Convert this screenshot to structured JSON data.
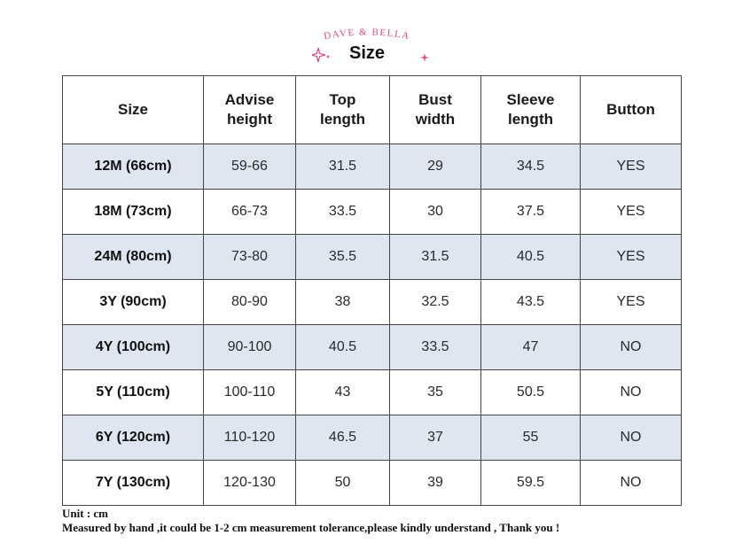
{
  "brand": {
    "logo_text": "DAVE & BELLA",
    "logo_color": "#e04a86"
  },
  "title": "Size",
  "table": {
    "headers": [
      "Size",
      "Advise\nheight",
      "Top\nlength",
      "Bust\nwidth",
      "Sleeve\nlength",
      "Button"
    ],
    "rows": [
      [
        "12M (66cm)",
        "59-66",
        "31.5",
        "29",
        "34.5",
        "YES"
      ],
      [
        "18M (73cm)",
        "66-73",
        "33.5",
        "30",
        "37.5",
        "YES"
      ],
      [
        "24M (80cm)",
        "73-80",
        "35.5",
        "31.5",
        "40.5",
        "YES"
      ],
      [
        "3Y (90cm)",
        "80-90",
        "38",
        "32.5",
        "43.5",
        "YES"
      ],
      [
        "4Y (100cm)",
        "90-100",
        "40.5",
        "33.5",
        "47",
        "NO"
      ],
      [
        "5Y (110cm)",
        "100-110",
        "43",
        "35",
        "50.5",
        "NO"
      ],
      [
        "6Y (120cm)",
        "110-120",
        "46.5",
        "37",
        "55",
        "NO"
      ],
      [
        "7Y (130cm)",
        "120-130",
        "50",
        "39",
        "59.5",
        "NO"
      ]
    ],
    "shaded_color": "#dde6f1"
  },
  "notes": {
    "unit": "Unit : cm",
    "disclaimer": "Measured by hand ,it could be 1-2 cm measurement tolerance,please kindly understand , Thank you !"
  }
}
